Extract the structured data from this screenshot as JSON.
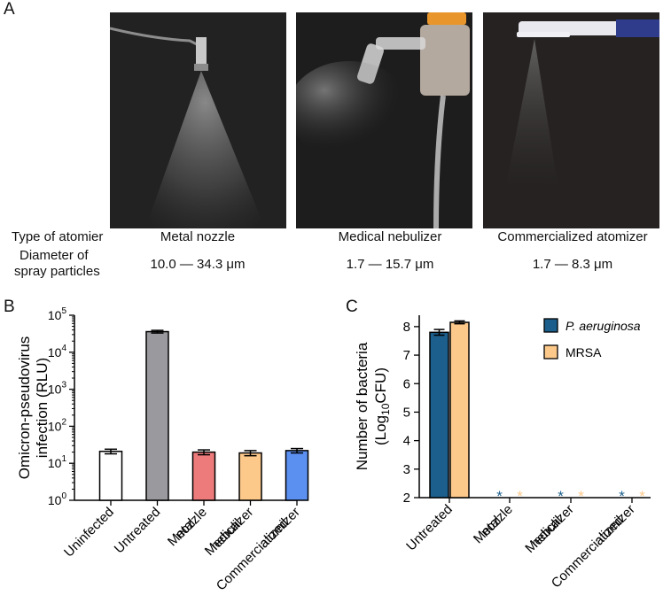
{
  "panel_a": {
    "letter": "A",
    "row_type_label": "Type of atomier",
    "row_diameter_label_1": "Diameter of",
    "row_diameter_label_2": "spray particles",
    "columns": [
      {
        "type": "Metal nozzle",
        "diameter": "10.0 — 34.3 μm"
      },
      {
        "type": "Medical  nebulizer",
        "diameter": "1.7 — 15.7 μm"
      },
      {
        "type": "Commercialized atomizer",
        "diameter": "1.7 — 8.3 μm"
      }
    ]
  },
  "chart_data": [
    {
      "panel": "B",
      "type": "bar",
      "yscale": "log",
      "ylim": [
        1,
        100000
      ],
      "ylabel_line1": "Omicron-pseudovirus",
      "ylabel_line2": "infection (RLU)",
      "yticks": [
        {
          "base": "10",
          "exp": "0"
        },
        {
          "base": "10",
          "exp": "1"
        },
        {
          "base": "10",
          "exp": "2"
        },
        {
          "base": "10",
          "exp": "3"
        },
        {
          "base": "10",
          "exp": "4"
        },
        {
          "base": "10",
          "exp": "5"
        }
      ],
      "categories": [
        [
          "Uninfected"
        ],
        [
          "Untreated"
        ],
        [
          "Metal",
          "nozzle"
        ],
        [
          "Medical",
          "nebulizer"
        ],
        [
          "Commercialized",
          "atomizer"
        ]
      ],
      "values": [
        21,
        36000,
        20,
        19,
        22
      ],
      "errors": [
        3,
        3000,
        3,
        3,
        3
      ],
      "colors": [
        "#ffffff",
        "#9a9a9e",
        "#ee7b7b",
        "#fdc98b",
        "#5b8ff0"
      ]
    },
    {
      "panel": "C",
      "type": "bar",
      "ylim": [
        2,
        8.4
      ],
      "ylabel_line1": "Number of bacteria",
      "ylabel_line2_pre": "(Log",
      "ylabel_line2_sub": "10",
      "ylabel_line2_post": "CFU)",
      "yticks": [
        "2",
        "3",
        "4",
        "5",
        "6",
        "7",
        "8"
      ],
      "categories": [
        [
          "Untreated"
        ],
        [
          "Metal",
          "nozzle"
        ],
        [
          "Medical",
          "nebulizer"
        ],
        [
          "Commercialized",
          "atomizer"
        ]
      ],
      "series": [
        {
          "name": "P. aeruginosa",
          "color": "#1c5f8c",
          "values": [
            7.8,
            null,
            null,
            null
          ],
          "errors": [
            0.1,
            null,
            null,
            null
          ]
        },
        {
          "name": "MRSA",
          "color": "#fdc98b",
          "values": [
            8.15,
            null,
            null,
            null
          ],
          "errors": [
            0.05,
            null,
            null,
            null
          ]
        }
      ],
      "star_marker": "*",
      "legend_position": "top-right"
    }
  ]
}
